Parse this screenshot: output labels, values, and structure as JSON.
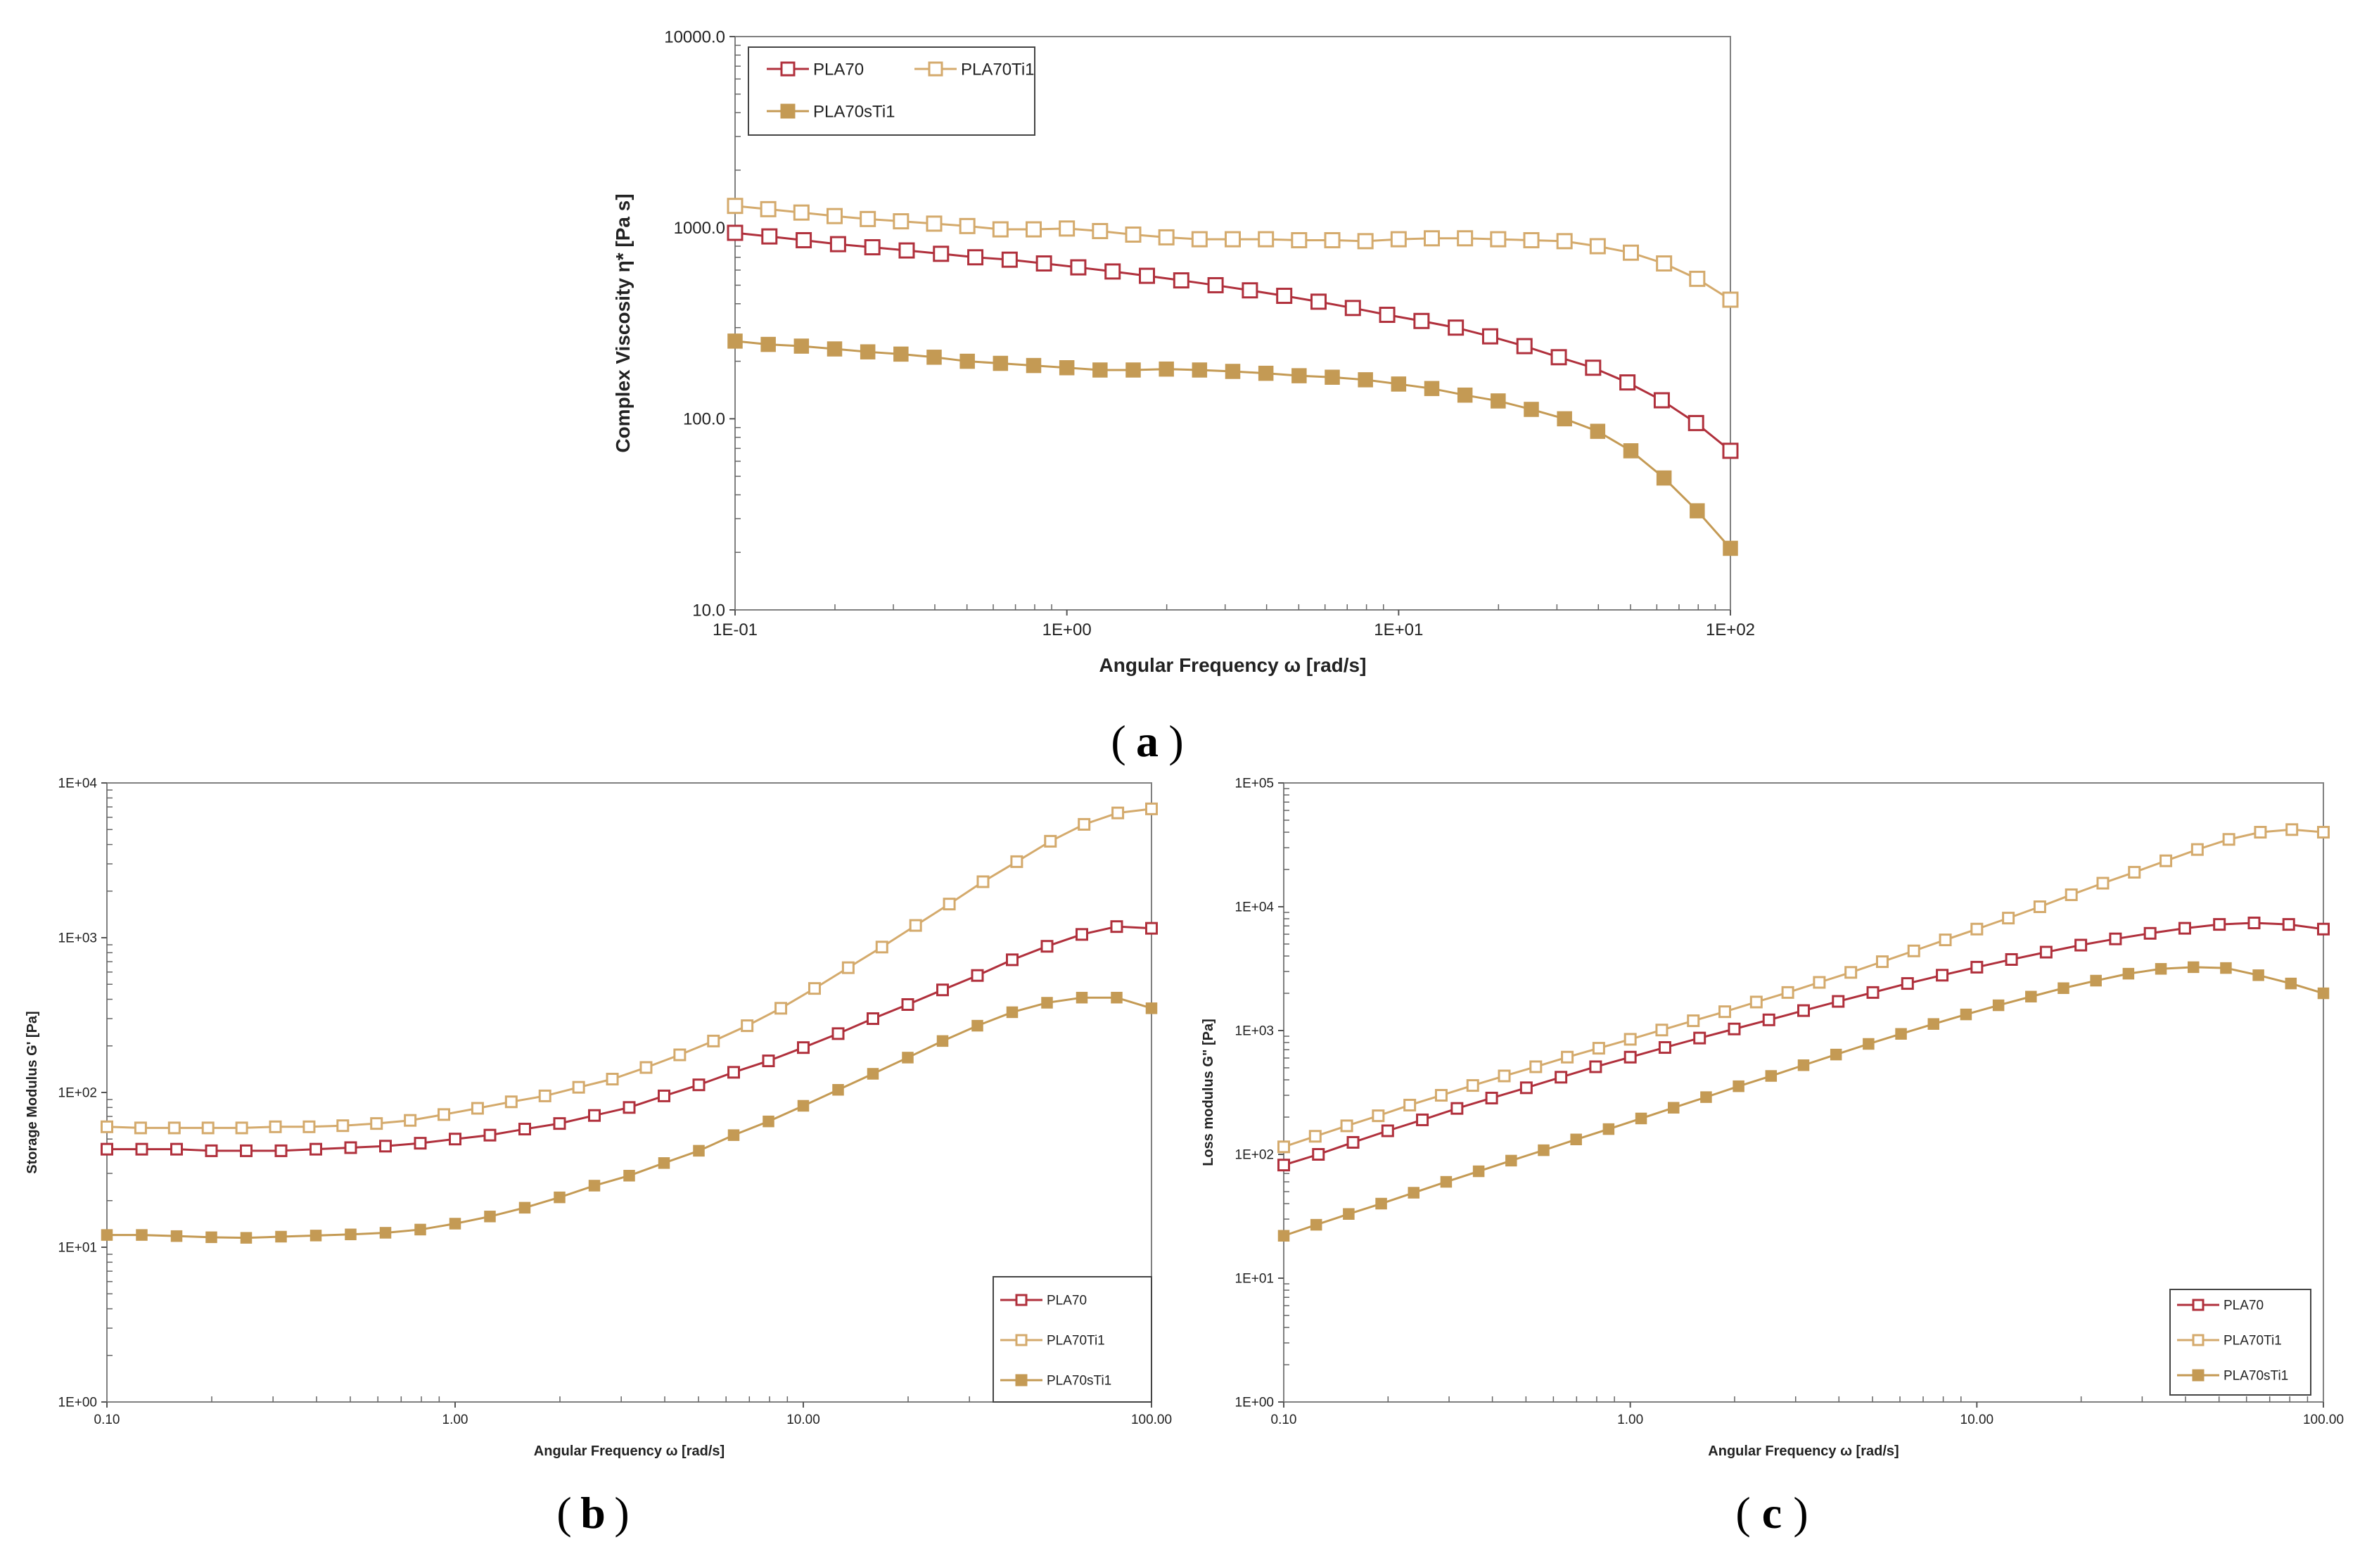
{
  "colors": {
    "PLA70": "#b0303c",
    "PLA70Ti1": "#d4aa6c",
    "PLA70sTi1": "#c49a54"
  },
  "panel_labels": {
    "a": "a",
    "b": "b",
    "c": "c"
  },
  "chart_data": [
    {
      "id": "a",
      "type": "line",
      "scale": "log-log",
      "xlabel": "Angular Frequency ω [rad/s]",
      "ylabel": "Complex Viscosity η* [Pa s]",
      "xlim": [
        0.1,
        100
      ],
      "ylim": [
        10,
        10000
      ],
      "xticks": [
        0.1,
        1,
        10,
        100
      ],
      "xtick_labels": [
        "1E-01",
        "1E+00",
        "1E+01",
        "1E+02"
      ],
      "yticks": [
        10,
        100,
        1000,
        10000
      ],
      "ytick_labels": [
        "10.0",
        "100.0",
        "1000.0",
        "10000.0"
      ],
      "legend": {
        "position": "top-left",
        "entries": [
          "PLA70",
          "PLA70Ti1",
          "PLA70sTi1"
        ]
      },
      "series": [
        {
          "name": "PLA70",
          "marker": "open-square",
          "values": [
            940,
            900,
            860,
            820,
            790,
            760,
            730,
            700,
            680,
            650,
            620,
            590,
            560,
            530,
            500,
            470,
            440,
            410,
            380,
            350,
            325,
            300,
            270,
            240,
            210,
            185,
            155,
            125,
            95,
            68
          ]
        },
        {
          "name": "PLA70Ti1",
          "marker": "open-square",
          "values": [
            1300,
            1250,
            1200,
            1150,
            1110,
            1080,
            1050,
            1020,
            980,
            980,
            990,
            960,
            920,
            890,
            870,
            870,
            870,
            860,
            860,
            850,
            870,
            880,
            880,
            870,
            860,
            850,
            800,
            740,
            650,
            540,
            420
          ]
        },
        {
          "name": "PLA70sTi1",
          "marker": "filled-square",
          "values": [
            255,
            245,
            240,
            232,
            224,
            218,
            210,
            200,
            195,
            190,
            185,
            180,
            180,
            182,
            180,
            177,
            173,
            168,
            165,
            160,
            152,
            144,
            133,
            124,
            112,
            100,
            86,
            68,
            49,
            33,
            21
          ]
        }
      ]
    },
    {
      "id": "b",
      "type": "line",
      "scale": "log-log",
      "xlabel": "Angular Frequency ω [rad/s]",
      "ylabel": "Storage Modulus G' [Pa]",
      "xlim": [
        0.1,
        100
      ],
      "ylim": [
        1,
        10000
      ],
      "xticks": [
        0.1,
        1,
        10,
        100
      ],
      "xtick_labels": [
        "0.10",
        "1.00",
        "10.00",
        "100.00"
      ],
      "yticks": [
        1,
        10,
        100,
        1000,
        10000
      ],
      "ytick_labels": [
        "1E+00",
        "1E+01",
        "1E+02",
        "1E+03",
        "1E+04"
      ],
      "legend": {
        "position": "bottom-right",
        "entries": [
          "PLA70",
          "PLA70Ti1",
          "PLA70sTi1"
        ]
      },
      "series": [
        {
          "name": "PLA70",
          "marker": "open-square",
          "values": [
            43,
            43,
            43,
            42,
            42,
            42,
            43,
            44,
            45,
            47,
            50,
            53,
            58,
            63,
            71,
            80,
            95,
            112,
            135,
            160,
            195,
            240,
            300,
            370,
            460,
            570,
            720,
            880,
            1050,
            1180,
            1150
          ]
        },
        {
          "name": "PLA70Ti1",
          "marker": "open-square",
          "values": [
            60,
            59,
            59,
            59,
            59,
            60,
            60,
            61,
            63,
            66,
            72,
            79,
            87,
            95,
            108,
            122,
            145,
            175,
            215,
            270,
            350,
            470,
            640,
            870,
            1200,
            1650,
            2300,
            3100,
            4200,
            5400,
            6400,
            6800
          ]
        },
        {
          "name": "PLA70sTi1",
          "marker": "filled-square",
          "values": [
            12,
            12,
            11.8,
            11.6,
            11.5,
            11.7,
            11.9,
            12.1,
            12.4,
            13,
            14.2,
            15.8,
            18,
            21,
            25,
            29,
            35,
            42,
            53,
            65,
            82,
            104,
            132,
            168,
            215,
            270,
            330,
            380,
            410,
            410,
            350
          ]
        }
      ]
    },
    {
      "id": "c",
      "type": "line",
      "scale": "log-log",
      "xlabel": "Angular Frequency ω [rad/s]",
      "ylabel": "Loss modulus G\" [Pa]",
      "xlim": [
        0.1,
        100
      ],
      "ylim": [
        1,
        100000
      ],
      "xticks": [
        0.1,
        1,
        10,
        100
      ],
      "xtick_labels": [
        "0.10",
        "1.00",
        "10.00",
        "100.00"
      ],
      "yticks": [
        1,
        10,
        100,
        1000,
        10000,
        100000
      ],
      "ytick_labels": [
        "1E+00",
        "1E+01",
        "1E+02",
        "1E+03",
        "1E+04",
        "1E+05"
      ],
      "legend": {
        "position": "bottom-right",
        "entries": [
          "PLA70",
          "PLA70Ti1",
          "PLA70sTi1"
        ]
      },
      "series": [
        {
          "name": "PLA70",
          "marker": "open-square",
          "values": [
            82,
            100,
            125,
            155,
            190,
            235,
            285,
            345,
            420,
            510,
            610,
            730,
            870,
            1030,
            1220,
            1450,
            1720,
            2030,
            2400,
            2800,
            3250,
            3750,
            4300,
            4900,
            5500,
            6100,
            6700,
            7200,
            7400,
            7200,
            6600
          ]
        },
        {
          "name": "PLA70Ti1",
          "marker": "open-square",
          "values": [
            115,
            140,
            170,
            205,
            250,
            300,
            360,
            430,
            510,
            610,
            720,
            850,
            1010,
            1200,
            1420,
            1700,
            2030,
            2450,
            2950,
            3600,
            4400,
            5400,
            6600,
            8100,
            10000,
            12500,
            15500,
            19000,
            23500,
            29000,
            35000,
            40000,
            42000,
            40000
          ]
        },
        {
          "name": "PLA70sTi1",
          "marker": "filled-square",
          "values": [
            22,
            27,
            33,
            40,
            49,
            60,
            73,
            89,
            108,
            132,
            160,
            195,
            238,
            290,
            355,
            430,
            525,
            640,
            780,
            940,
            1130,
            1350,
            1600,
            1880,
            2200,
            2530,
            2880,
            3150,
            3250,
            3200,
            2800,
            2400,
            2000
          ]
        }
      ]
    }
  ]
}
